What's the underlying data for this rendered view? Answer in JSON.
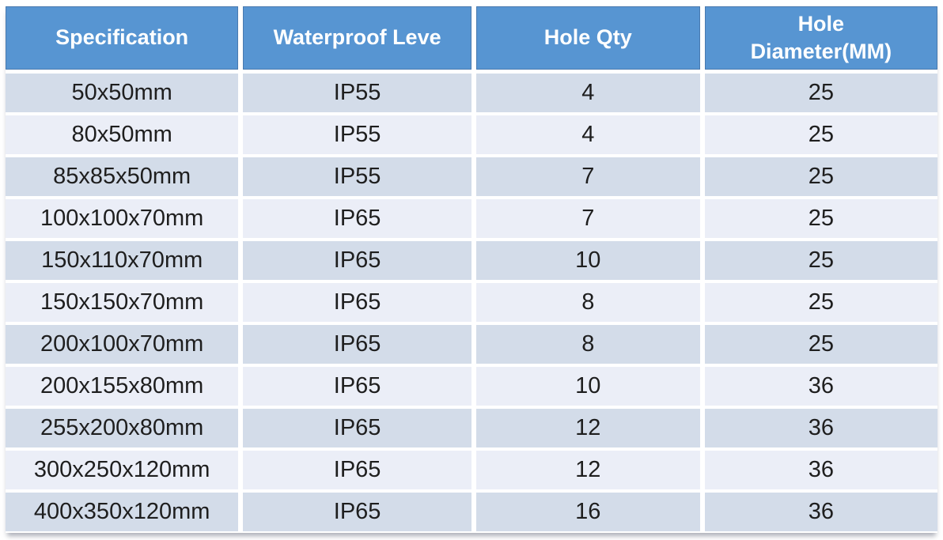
{
  "chart_data": {
    "type": "table",
    "columns": [
      "Specification",
      "Waterproof Leve",
      "Hole Qty",
      "Hole Diameter(MM)"
    ],
    "rows": [
      [
        "50x50mm",
        "IP55",
        "4",
        "25"
      ],
      [
        "80x50mm",
        "IP55",
        "4",
        "25"
      ],
      [
        "85x85x50mm",
        "IP55",
        "7",
        "25"
      ],
      [
        "100x100x70mm",
        "IP65",
        "7",
        "25"
      ],
      [
        "150x110x70mm",
        "IP65",
        "10",
        "25"
      ],
      [
        "150x150x70mm",
        "IP65",
        "8",
        "25"
      ],
      [
        "200x100x70mm",
        "IP65",
        "8",
        "25"
      ],
      [
        "200x155x80mm",
        "IP65",
        "10",
        "36"
      ],
      [
        "255x200x80mm",
        "IP65",
        "12",
        "36"
      ],
      [
        "300x250x120mm",
        "IP65",
        "12",
        "36"
      ],
      [
        "400x350x120mm",
        "IP65",
        "16",
        "36"
      ]
    ]
  },
  "colors": {
    "header_bg": "#5795d2",
    "header_text": "#ffffff",
    "row_odd_bg": "#d3dce9",
    "row_even_bg": "#ebeef7",
    "body_text": "#1e1e1e",
    "page_bg": "#ffffff"
  }
}
